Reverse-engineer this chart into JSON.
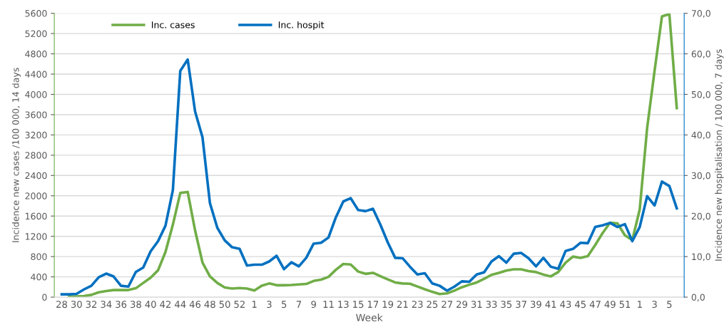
{
  "chart_data": {
    "type": "line",
    "xlabel": "Week",
    "ylabel": "Incidence new cases /100 000, 14 days",
    "y2label": "Incidence new hospitalisation / 100 000, 7 days",
    "categories": [
      "28",
      null,
      "30",
      null,
      "32",
      null,
      "34",
      null,
      "36",
      null,
      "38",
      null,
      "40",
      null,
      "42",
      null,
      "44",
      null,
      "46",
      null,
      "48",
      null,
      "50",
      null,
      "52",
      null,
      "1",
      null,
      "3",
      null,
      "5",
      null,
      "7",
      null,
      "9",
      null,
      "11",
      null,
      "13",
      null,
      "15",
      null,
      "17",
      null,
      "19",
      null,
      "21",
      null,
      "23",
      null,
      "25",
      null,
      "27",
      null,
      "29",
      null,
      "31",
      null,
      "33",
      null,
      "35",
      null,
      "37",
      null,
      "39",
      null,
      "41",
      null,
      "43",
      null,
      "45",
      null,
      "47",
      null,
      "49",
      null,
      "51",
      null,
      "1",
      null,
      "3",
      null,
      "5",
      null
    ],
    "series": [
      {
        "name": "Inc. cases",
        "color": "#70ad47",
        "values": [
          null,
          10,
          15,
          20,
          45,
          95,
          120,
          140,
          140,
          140,
          175,
          280,
          385,
          530,
          890,
          1430,
          2055,
          2075,
          1315,
          680,
          410,
          280,
          190,
          170,
          180,
          170,
          130,
          225,
          270,
          235,
          235,
          240,
          250,
          260,
          320,
          345,
          400,
          540,
          655,
          645,
          505,
          460,
          480,
          415,
          350,
          290,
          270,
          265,
          210,
          155,
          105,
          60,
          75,
          130,
          195,
          245,
          290,
          360,
          440,
          480,
          525,
          550,
          550,
          515,
          495,
          445,
          410,
          495,
          680,
          800,
          775,
          810,
          1030,
          1265,
          1470,
          1455,
          1220,
          1125,
          1730,
          3335,
          4460,
          5540,
          5585,
          3730
        ]
      },
      {
        "name": "Inc. hospit",
        "color": "#0070c0",
        "axis": "y2",
        "values": [
          0.7,
          0.7,
          0.8,
          1.9,
          2.8,
          4.9,
          5.8,
          5.1,
          2.8,
          2.6,
          6.2,
          7.3,
          11.3,
          13.8,
          17.6,
          26.4,
          55.8,
          58.6,
          45.8,
          39.4,
          23.2,
          17.1,
          14.0,
          12.3,
          11.9,
          7.8,
          8.0,
          8.0,
          8.8,
          10.2,
          6.9,
          8.6,
          7.6,
          9.7,
          13.2,
          13.4,
          14.7,
          19.7,
          23.6,
          24.4,
          21.5,
          21.2,
          21.8,
          17.9,
          13.5,
          9.7,
          9.6,
          7.5,
          5.6,
          5.9,
          3.4,
          2.8,
          1.6,
          2.6,
          3.9,
          3.8,
          5.6,
          6.1,
          8.8,
          10.1,
          8.5,
          10.7,
          10.9,
          9.6,
          7.6,
          9.7,
          7.5,
          7.0,
          11.4,
          11.9,
          13.4,
          13.3,
          17.3,
          17.7,
          18.3,
          17.3,
          18.0,
          13.8,
          17.3,
          24.9,
          22.6,
          28.5,
          27.4,
          21.9
        ]
      }
    ],
    "ylim": [
      0,
      5600
    ],
    "yticks": [
      0,
      400,
      800,
      1200,
      1600,
      2000,
      2400,
      2800,
      3200,
      3600,
      4000,
      4400,
      4800,
      5200,
      5600
    ],
    "y2lim": [
      0,
      70
    ],
    "y2ticks": [
      {
        "value": 0,
        "label": "0,0"
      },
      {
        "value": 10,
        "label": "10,0"
      },
      {
        "value": 20,
        "label": "20,0"
      },
      {
        "value": 30,
        "label": "30,0"
      },
      {
        "value": 40,
        "label": "40,0"
      },
      {
        "value": 50,
        "label": "50,0"
      },
      {
        "value": 60,
        "label": "60,0"
      },
      {
        "value": 70,
        "label": "70,0"
      }
    ],
    "grid": "y",
    "legend": "top left",
    "marker": "none",
    "line_style": "solid"
  }
}
